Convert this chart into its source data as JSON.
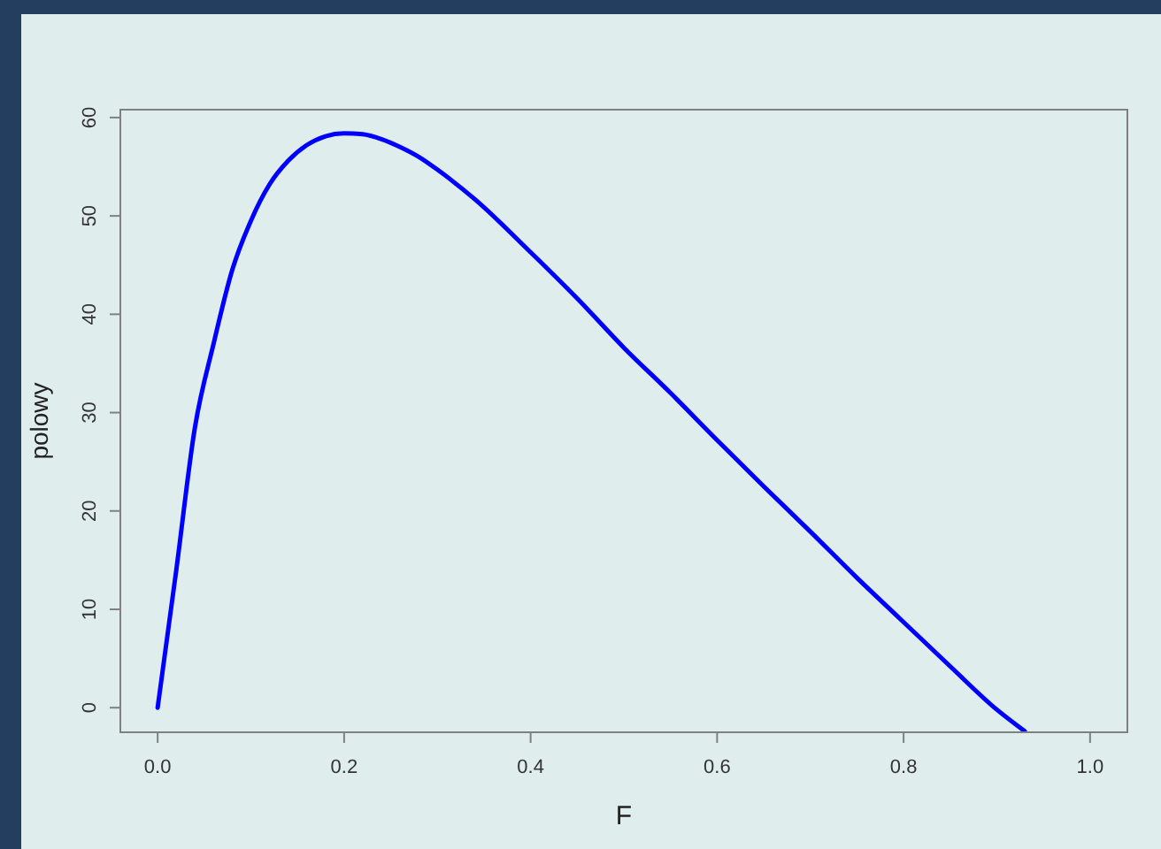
{
  "chart_data": {
    "type": "line",
    "xlabel": "F",
    "ylabel": "polowy",
    "x": [
      0,
      0.02,
      0.04,
      0.06,
      0.08,
      0.1,
      0.12,
      0.14,
      0.16,
      0.18,
      0.2,
      0.22,
      0.24,
      0.26,
      0.28,
      0.3,
      0.34,
      0.4,
      0.45,
      0.5,
      0.55,
      0.6,
      0.65,
      0.7,
      0.75,
      0.8,
      0.85,
      0.9,
      0.93
    ],
    "series": [
      {
        "color": "#0000ff",
        "values": [
          0,
          14,
          28.5,
          37,
          44.5,
          49.5,
          53.2,
          55.6,
          57.2,
          58.1,
          58.4,
          58.3,
          57.8,
          57,
          56,
          54.7,
          51.7,
          46.3,
          41.6,
          36.6,
          32,
          27.2,
          22.5,
          17.9,
          13.2,
          8.7,
          4.2,
          -0.2,
          -2.4
        ]
      }
    ],
    "xlim": [
      -0.04,
      1.04
    ],
    "ylim": [
      -2.5,
      60.8
    ],
    "xticks": [
      {
        "value": 0,
        "label": "0.0"
      },
      0.2,
      0.4,
      0.6,
      0.8,
      {
        "value": 1,
        "label": "1.0"
      }
    ],
    "yticks": [
      0,
      10,
      20,
      30,
      40,
      50,
      60
    ],
    "grid": false,
    "marker": "none",
    "line_style": "solid"
  }
}
